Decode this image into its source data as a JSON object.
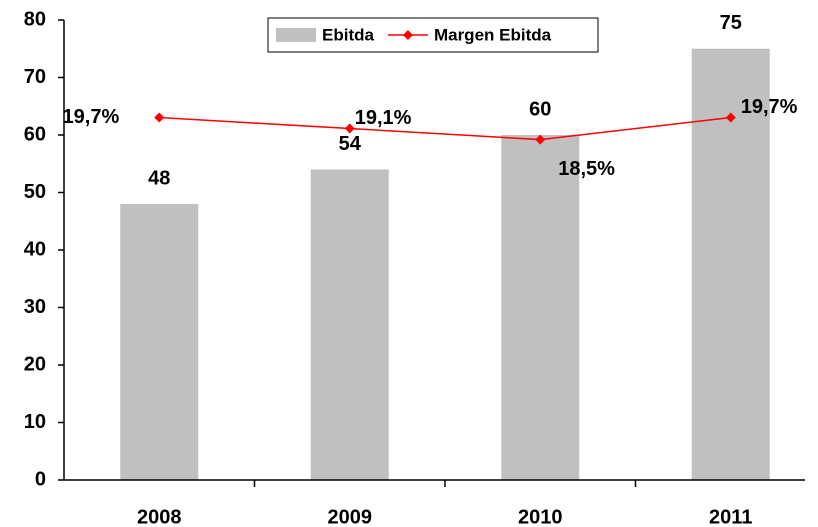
{
  "chart_data": {
    "type": "bar",
    "categories": [
      "2008",
      "2009",
      "2010",
      "2011"
    ],
    "series": [
      {
        "name": "Ebitda",
        "type": "bar",
        "color": "#c0c0c0",
        "values": [
          48,
          54,
          60,
          75
        ]
      },
      {
        "name": "Margen Ebitda",
        "type": "line",
        "axis": "y2",
        "color": "#ff0000",
        "values": [
          19.7,
          19.1,
          18.5,
          19.7
        ],
        "value_labels": [
          "19,7%",
          "19,1%",
          "18,5%",
          "19,7%"
        ]
      }
    ],
    "ylim": [
      0,
      80
    ],
    "yticks": [
      0,
      10,
      20,
      30,
      40,
      50,
      60,
      70,
      80
    ],
    "y2lim": [
      0,
      25
    ],
    "legend": "top"
  }
}
